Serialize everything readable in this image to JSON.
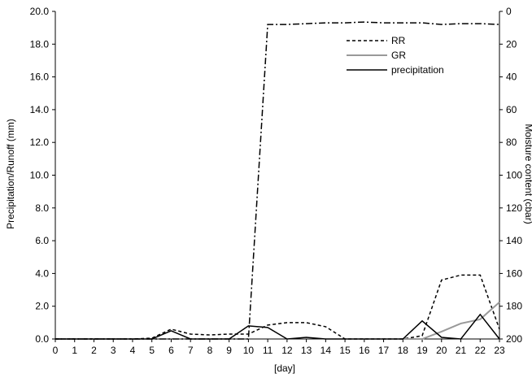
{
  "chart_data": {
    "type": "line",
    "xlabel": "[day]",
    "ylabel_left": "Precipitation/Runoff (mm)",
    "ylabel_right": "Moisture content (cbar)",
    "x": [
      0,
      1,
      2,
      3,
      4,
      5,
      6,
      7,
      8,
      9,
      10,
      11,
      12,
      13,
      14,
      15,
      16,
      17,
      18,
      19,
      20,
      21,
      22,
      23
    ],
    "xlim": [
      0,
      23
    ],
    "ylim_left": [
      0,
      20
    ],
    "ylim_right": [
      200,
      0
    ],
    "y_left_ticks": [
      "0.0",
      "2.0",
      "4.0",
      "6.0",
      "8.0",
      "10.0",
      "12.0",
      "14.0",
      "16.0",
      "18.0",
      "20.0"
    ],
    "y_right_ticks": [
      "200",
      "180",
      "160",
      "140",
      "120",
      "100",
      "80",
      "60",
      "40",
      "20",
      "0"
    ],
    "grid": false,
    "legend_position": "top-right",
    "series": [
      {
        "name": "RR",
        "axis": "left",
        "style": "dashed",
        "color": "#000000",
        "x": [
          0,
          1,
          2,
          3,
          4,
          5,
          6,
          7,
          8,
          9,
          10,
          11,
          12,
          13,
          14,
          15,
          16,
          17,
          18,
          19,
          20,
          21,
          22,
          23
        ],
        "values": [
          0,
          0,
          0,
          0,
          0,
          0.05,
          0.6,
          0.3,
          0.25,
          0.3,
          0.3,
          0.85,
          1.0,
          1.0,
          0.75,
          0,
          0,
          0,
          0,
          0.2,
          3.6,
          3.9,
          3.9,
          0.6
        ]
      },
      {
        "name": "GR",
        "axis": "left",
        "style": "solid",
        "color": "#999999",
        "x": [
          18,
          19,
          20,
          21,
          22,
          23
        ],
        "values": [
          0,
          0,
          0.45,
          0.95,
          1.2,
          2.25
        ]
      },
      {
        "name": "precipitation",
        "axis": "left",
        "style": "solid",
        "color": "#000000",
        "x": [
          0,
          1,
          2,
          3,
          4,
          5,
          6,
          7,
          8,
          9,
          10,
          11,
          12,
          13,
          14,
          15,
          16,
          17,
          18,
          19,
          20,
          21,
          22,
          23
        ],
        "values": [
          0,
          0,
          0,
          0,
          0,
          0,
          0.5,
          0,
          0,
          0,
          0.8,
          0.7,
          0,
          0.1,
          0,
          0,
          0,
          0,
          0,
          1.1,
          0.1,
          0,
          1.5,
          0
        ]
      },
      {
        "name": "",
        "axis": "right",
        "style": "dash-dot",
        "color": "#000000",
        "x": [
          0,
          1,
          2,
          3,
          4,
          5,
          6,
          7,
          8,
          9,
          10,
          11,
          12,
          13,
          14,
          15,
          16,
          17,
          18,
          19,
          20,
          21,
          22,
          23
        ],
        "values": [
          200,
          200,
          200,
          200,
          200,
          200,
          200,
          200,
          200,
          200,
          200,
          8,
          8,
          7.5,
          7,
          7,
          6.5,
          7,
          7,
          7,
          8,
          7.5,
          7.5,
          8
        ]
      }
    ]
  }
}
